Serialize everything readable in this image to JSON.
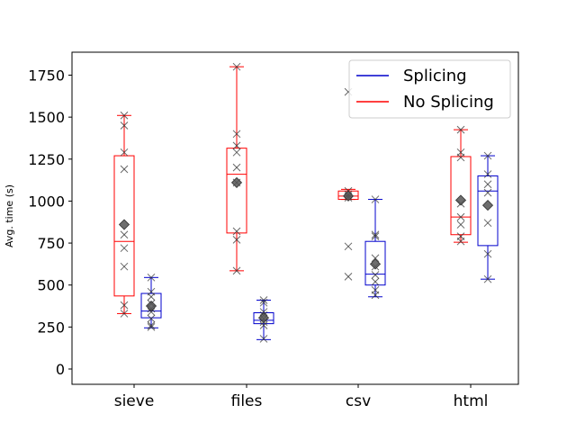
{
  "chart_data": {
    "type": "box",
    "title": "",
    "xlabel": "",
    "ylabel": "Avg. time (s)",
    "categories": [
      "sieve",
      "files",
      "csv",
      "html"
    ],
    "ylim": [
      -80,
      1880
    ],
    "yticks": [
      0,
      250,
      500,
      750,
      1000,
      1250,
      1500,
      1750
    ],
    "legend": {
      "position": "top-right",
      "entries": [
        "Splicing",
        "No Splicing"
      ]
    },
    "series": [
      {
        "name": "No Splicing",
        "color": "#ff0000",
        "boxes": [
          {
            "category": "sieve",
            "whisker_low": 330,
            "q1": 435,
            "median": 760,
            "q3": 1270,
            "whisker_high": 1510,
            "mean": 860,
            "points": [
              330,
              380,
              610,
              720,
              800,
              1190,
              1290,
              1450,
              1510
            ]
          },
          {
            "category": "files",
            "whisker_low": 585,
            "q1": 810,
            "median": 1160,
            "q3": 1315,
            "whisker_high": 1800,
            "mean": 1110,
            "points": [
              585,
              770,
              820,
              1110,
              1200,
              1290,
              1330,
              1400,
              1800
            ]
          },
          {
            "category": "csv",
            "whisker_low": 1010,
            "q1": 1010,
            "median": 1030,
            "q3": 1060,
            "whisker_high": 1070,
            "mean": 1030,
            "points": [
              550,
              730,
              1020,
              1030,
              1040,
              1060,
              1650
            ]
          },
          {
            "category": "html",
            "whisker_low": 755,
            "q1": 800,
            "median": 905,
            "q3": 1265,
            "whisker_high": 1425,
            "mean": 1005,
            "points": [
              760,
              790,
              860,
              905,
              985,
              1260,
              1290,
              1425
            ]
          }
        ]
      },
      {
        "name": "Splicing",
        "color": "#0000cc",
        "boxes": [
          {
            "category": "sieve",
            "whisker_low": 245,
            "q1": 305,
            "median": 345,
            "q3": 450,
            "whisker_high": 545,
            "mean": 375,
            "points": [
              250,
              260,
              300,
              340,
              360,
              390,
              430,
              460,
              545
            ]
          },
          {
            "category": "files",
            "whisker_low": 175,
            "q1": 270,
            "median": 290,
            "q3": 335,
            "whisker_high": 410,
            "mean": 305,
            "points": [
              180,
              260,
              280,
              300,
              320,
              340,
              395,
              410
            ]
          },
          {
            "category": "csv",
            "whisker_low": 430,
            "q1": 500,
            "median": 565,
            "q3": 760,
            "whisker_high": 1010,
            "mean": 625,
            "points": [
              440,
              470,
              520,
              560,
              610,
              660,
              790,
              800,
              1010
            ]
          },
          {
            "category": "html",
            "whisker_low": 535,
            "q1": 735,
            "median": 1060,
            "q3": 1150,
            "whisker_high": 1270,
            "mean": 975,
            "points": [
              535,
              685,
              870,
              1050,
              1100,
              1160,
              1270
            ]
          }
        ]
      }
    ]
  }
}
